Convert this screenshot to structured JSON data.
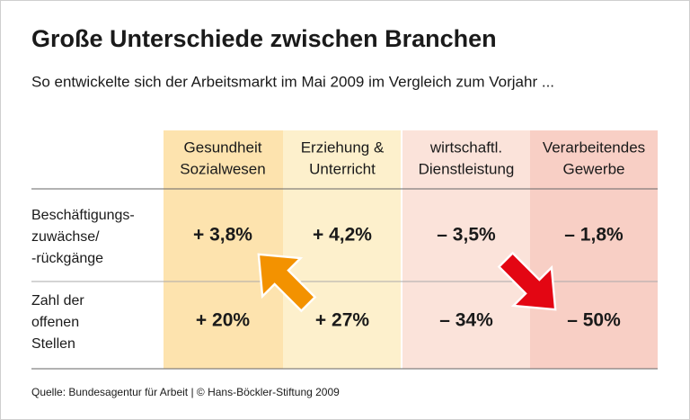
{
  "header": {
    "title": "Große Unterschiede zwischen Branchen",
    "subtitle": "So entwickelte sich der Arbeitsmarkt im Mai 2009 im Vergleich zum Vorjahr  ..."
  },
  "table": {
    "columns": [
      [
        "Gesundheit",
        "Sozialwesen"
      ],
      [
        "Erziehung &",
        "Unterricht"
      ],
      [
        "wirtschaftl.",
        "Dienstleistung"
      ],
      [
        "Verarbeitendes",
        "Gewerbe"
      ]
    ],
    "row_labels": [
      [
        "Beschäftigungs-",
        "zuwächse/",
        "-rückgänge"
      ],
      [
        "Zahl der",
        "offenen",
        "Stellen"
      ]
    ],
    "rows": [
      [
        "+ 3,8%",
        "+ 4,2%",
        "– 3,5%",
        "– 1,8%"
      ],
      [
        "+ 20%",
        "+ 27%",
        "– 34%",
        "– 50%"
      ]
    ]
  },
  "footer": {
    "source": "Quelle: Bundesagentur für Arbeit | © Hans-Böckler-Stiftung 2009"
  }
}
